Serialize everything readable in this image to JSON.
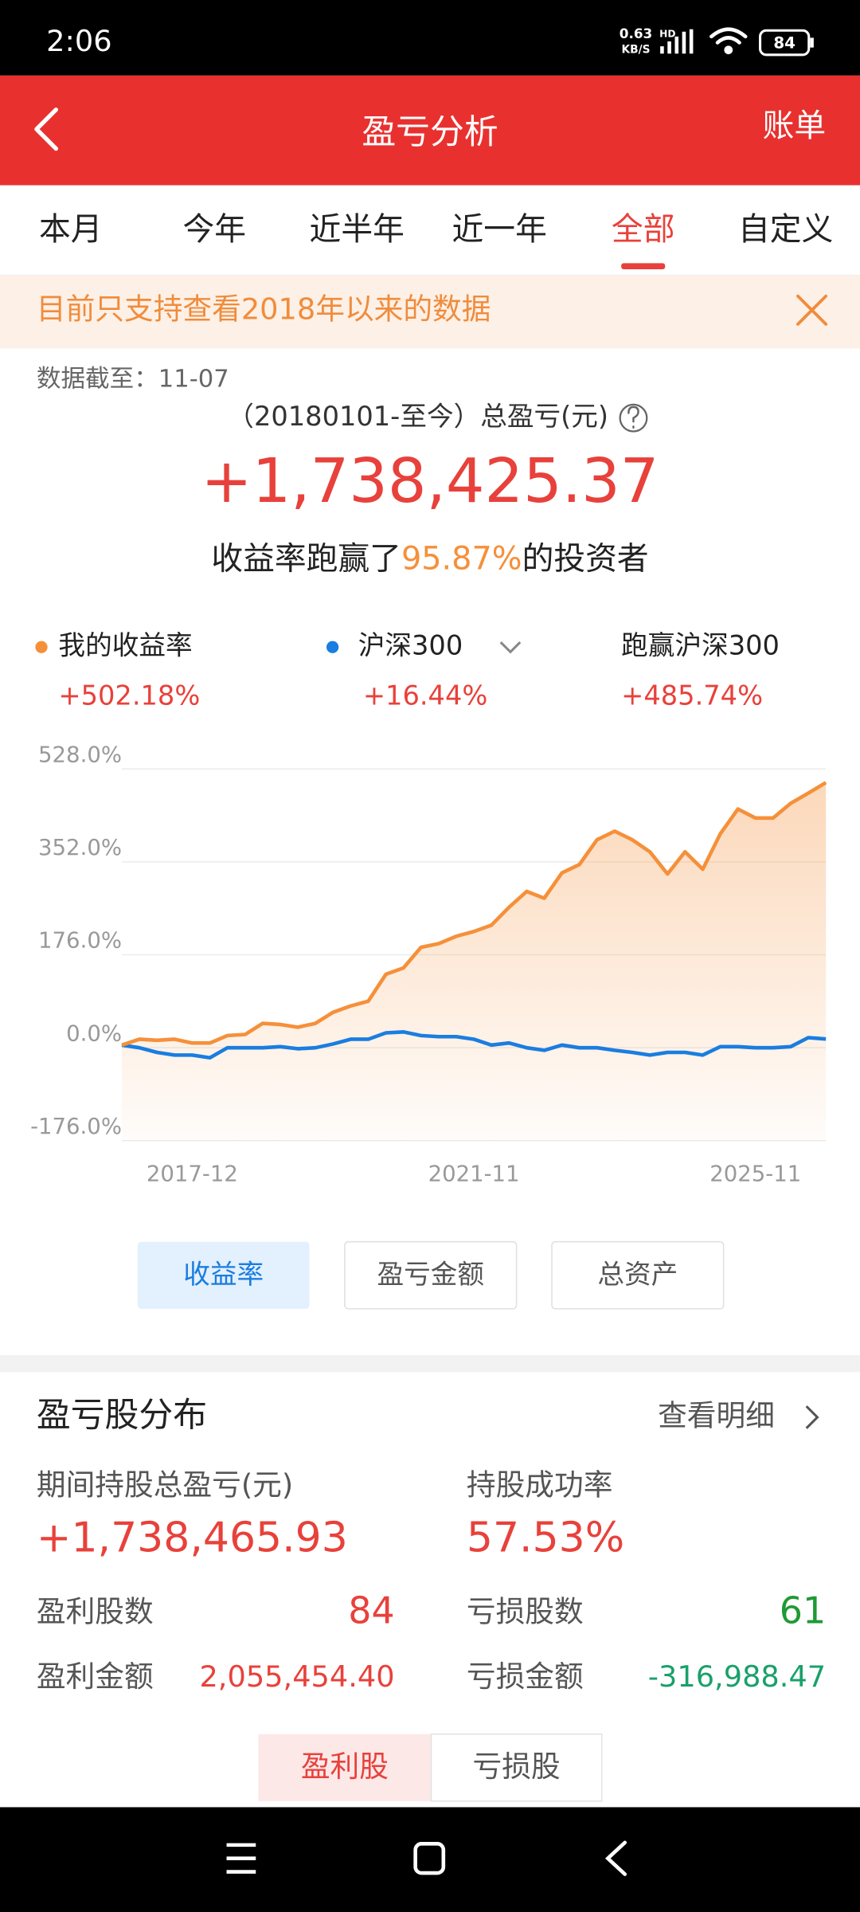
{
  "status_bar": {
    "time": "2:06",
    "speed": "0.63",
    "speed_unit": "KB/S",
    "network": "HD",
    "battery": "84"
  },
  "header": {
    "title": "盈亏分析",
    "action": "账单"
  },
  "tabs": [
    "本月",
    "今年",
    "近半年",
    "近一年",
    "全部",
    "自定义"
  ],
  "active_tab": 4,
  "notice": "目前只支持查看2018年以来的数据",
  "summary": {
    "as_of": "数据截至：11-07",
    "total_label": "（20180101-至今）总盈亏(元)",
    "total": "+1,738,425.37",
    "beat_prefix": "收益率跑赢了",
    "beat_pct": "95.87%",
    "beat_suffix": "的投资者"
  },
  "excess": {
    "name": "跑赢沪深300",
    "value": "+485.74%"
  },
  "chart_data": {
    "type": "line",
    "categories": [
      null,
      null,
      null,
      null,
      "2017-12",
      null,
      null,
      null,
      null,
      null,
      null,
      null,
      null,
      null,
      null,
      null,
      null,
      null,
      null,
      null,
      "2021-11",
      null,
      null,
      null,
      null,
      null,
      null,
      null,
      null,
      null,
      null,
      null,
      null,
      null,
      null,
      null,
      "2025-11",
      null,
      null,
      null,
      null
    ],
    "series": [
      {
        "name": "我的收益率",
        "color": "#f5903a",
        "total_label": "+502.18%",
        "values": [
          5,
          16,
          14,
          16,
          9,
          9,
          23,
          25,
          46,
          44,
          39,
          46,
          67,
          79,
          88,
          139,
          151,
          190,
          197,
          211,
          220,
          232,
          266,
          296,
          283,
          331,
          347,
          394,
          410,
          394,
          371,
          329,
          371,
          338,
          405,
          452,
          435,
          435,
          463,
          482,
          502.18
        ]
      },
      {
        "name": "沪深300",
        "color": "#1a7de0",
        "total_label": "+16.44%",
        "values": [
          5,
          0,
          -9,
          -14,
          -14,
          -19,
          0,
          0,
          0,
          2,
          -2,
          0,
          7,
          16,
          16,
          28,
          30,
          23,
          21,
          21,
          16,
          5,
          9,
          0,
          -5,
          5,
          0,
          0,
          -5,
          -9,
          -14,
          -9,
          -9,
          -14,
          2,
          2,
          0,
          0,
          2,
          19,
          16.44
        ]
      }
    ],
    "ylim": [
      -176,
      528
    ],
    "yticks": [
      {
        "value": -176,
        "label": "-176.0%"
      },
      {
        "value": 0,
        "label": "0.0%"
      },
      {
        "value": 176,
        "label": "176.0%"
      },
      {
        "value": 352,
        "label": "352.0%"
      },
      {
        "value": 528,
        "label": "528.0%"
      }
    ],
    "grid": true
  },
  "chart_buttons": [
    "收益率",
    "盈亏金额",
    "总资产"
  ],
  "active_chart_button": 0,
  "distribution": {
    "title": "盈亏股分布",
    "link": "查看明细",
    "total_label": "期间持股总盈亏(元)",
    "total": "+1,738,465.93",
    "success_label": "持股成功率",
    "success": "57.53%",
    "profit_count_label": "盈利股数",
    "profit_count": 84,
    "loss_count_label": "亏损股数",
    "loss_count": 61,
    "profit_amount_label": "盈利金额",
    "profit_amount": "2,055,454.40",
    "loss_amount_label": "亏损金额",
    "loss_amount": "-316,988.47",
    "toggle": [
      "盈利股",
      "亏损股"
    ]
  }
}
